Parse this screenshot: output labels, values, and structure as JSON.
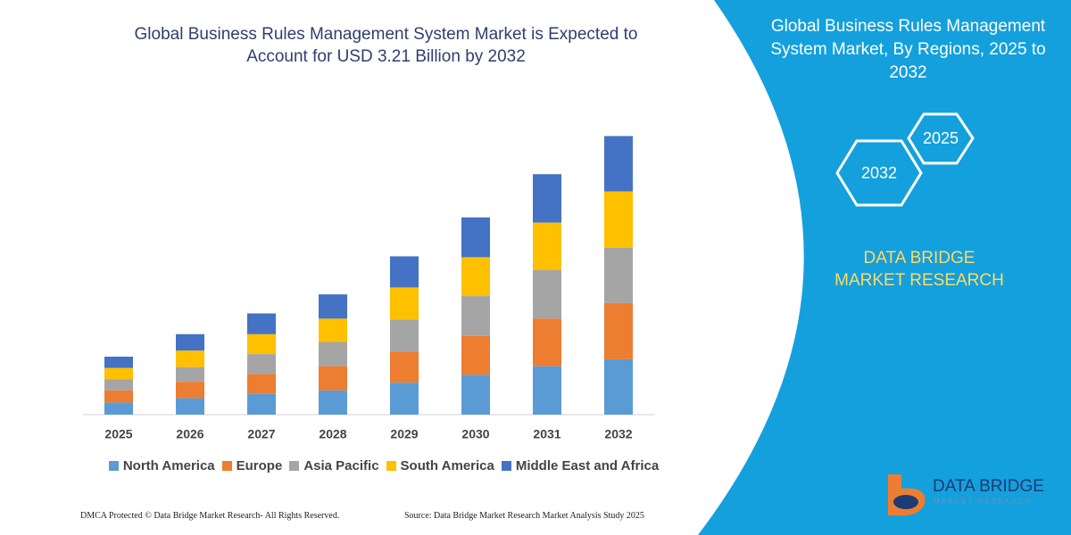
{
  "chart_data": {
    "type": "bar",
    "stacked": true,
    "title": "Global Business Rules Management System Market is Expected to Account for USD 3.21 Billion by 2032",
    "categories": [
      "2025",
      "2026",
      "2027",
      "2028",
      "2029",
      "2030",
      "2031",
      "2032"
    ],
    "series": [
      {
        "name": "North America",
        "color": "#5b9bd5",
        "values": [
          0.14,
          0.19,
          0.24,
          0.28,
          0.37,
          0.46,
          0.56,
          0.64
        ]
      },
      {
        "name": "Europe",
        "color": "#ed7d31",
        "values": [
          0.14,
          0.19,
          0.23,
          0.28,
          0.36,
          0.45,
          0.55,
          0.65
        ]
      },
      {
        "name": "Asia Pacific",
        "color": "#a5a5a5",
        "values": [
          0.13,
          0.17,
          0.23,
          0.28,
          0.37,
          0.46,
          0.56,
          0.64
        ]
      },
      {
        "name": "South America",
        "color": "#ffc000",
        "values": [
          0.13,
          0.19,
          0.23,
          0.27,
          0.37,
          0.45,
          0.55,
          0.65
        ]
      },
      {
        "name": "Middle East and Africa",
        "color": "#4472c4",
        "values": [
          0.13,
          0.19,
          0.24,
          0.28,
          0.36,
          0.46,
          0.56,
          0.64
        ]
      }
    ],
    "ylim": [
      0,
      3.35
    ],
    "legend": "bottom"
  },
  "panel": {
    "title": "Global Business Rules Management System Market, By Regions, 2025 to 2032",
    "hexagons": [
      "2025",
      "2032"
    ],
    "brand": "DATA BRIDGE MARKET RESEARCH"
  },
  "logo": {
    "name": "DATA BRIDGE",
    "tagline": "MARKET RESEARCH"
  },
  "footer": {
    "left": "DMCA Protected © Data Bridge Market Research- All Rights Reserved.",
    "right": "Source: Data Bridge Market Research Market Analysis Study 2025"
  }
}
